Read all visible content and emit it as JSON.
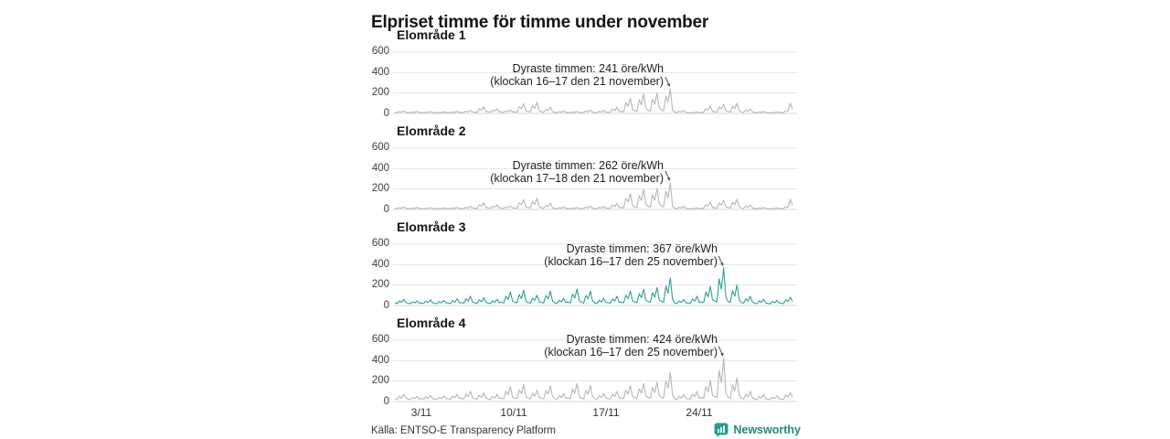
{
  "title": "Elpriset timme för timme under november",
  "source": "Källa: ENTSO-E Transparency Platform",
  "branding": {
    "name": "Newsworthy",
    "logo_color": "#1da092",
    "text_color": "#1f8a80"
  },
  "colors": {
    "gray_line": "#b5b5bd",
    "teal_line": "#28a396",
    "grid": "#e4e4e4",
    "zero_line": "#d7d7d7",
    "arrow": "#4a4a4a"
  },
  "axis": {
    "yticks": [
      "600",
      "400",
      "200",
      "0"
    ],
    "xticks": [
      "3/11",
      "10/11",
      "17/11",
      "24/11"
    ],
    "ymin": 0,
    "ymax": 600,
    "x_range": "1 november – 30 november, timvärden",
    "grid": "horizontal only"
  },
  "chart_data": [
    {
      "type": "line",
      "title": "Elområde 1",
      "ylabel": "öre/kWh",
      "color": "#b5b5bd",
      "peak": {
        "value": 241,
        "unit": "öre/kWh",
        "hours": "16–17",
        "date": "21 november"
      },
      "annotation": {
        "line1": "Dyraste timmen: 241 öre/kWh",
        "line2": "(klockan 16–17 den 21 november)"
      },
      "start": "1/11 00:00",
      "sample_interval_hours": 4,
      "values": [
        10,
        8,
        18,
        12,
        25,
        12,
        8,
        7,
        14,
        10,
        20,
        10,
        8,
        6,
        13,
        9,
        18,
        9,
        7,
        6,
        11,
        8,
        15,
        8,
        8,
        7,
        14,
        10,
        20,
        10,
        10,
        8,
        21,
        14,
        30,
        13,
        12,
        10,
        45,
        30,
        65,
        20,
        14,
        12,
        32,
        22,
        45,
        16,
        12,
        10,
        25,
        17,
        35,
        14,
        15,
        12,
        66,
        45,
        95,
        25,
        18,
        15,
        77,
        50,
        110,
        28,
        15,
        12,
        42,
        28,
        60,
        18,
        10,
        8,
        18,
        12,
        25,
        10,
        8,
        7,
        14,
        10,
        20,
        9,
        10,
        8,
        25,
        16,
        35,
        12,
        10,
        8,
        21,
        14,
        30,
        12,
        12,
        10,
        42,
        28,
        60,
        20,
        20,
        15,
        105,
        70,
        150,
        40,
        25,
        20,
        133,
        85,
        190,
        50,
        30,
        22,
        140,
        90,
        200,
        55,
        35,
        25,
        168,
        110,
        241,
        30,
        12,
        8,
        21,
        14,
        30,
        10,
        6,
        5,
        11,
        8,
        15,
        7,
        10,
        8,
        49,
        32,
        70,
        20,
        15,
        12,
        63,
        42,
        90,
        25,
        18,
        14,
        70,
        46,
        100,
        26,
        12,
        10,
        32,
        20,
        45,
        15,
        8,
        7,
        14,
        10,
        20,
        9,
        6,
        5,
        11,
        8,
        15,
        7,
        8,
        6,
        30,
        20,
        100,
        40
      ]
    },
    {
      "type": "line",
      "title": "Elområde 2",
      "ylabel": "öre/kWh",
      "color": "#b5b5bd",
      "peak": {
        "value": 262,
        "unit": "öre/kWh",
        "hours": "17–18",
        "date": "21 november"
      },
      "annotation": {
        "line1": "Dyraste timmen: 262 öre/kWh",
        "line2": "(klockan 17–18 den 21 november)"
      },
      "start": "1/11 00:00",
      "sample_interval_hours": 4,
      "values": [
        10,
        8,
        18,
        12,
        25,
        12,
        8,
        7,
        14,
        10,
        20,
        10,
        8,
        6,
        13,
        9,
        18,
        9,
        7,
        6,
        11,
        8,
        15,
        8,
        8,
        7,
        14,
        10,
        20,
        10,
        10,
        8,
        21,
        14,
        30,
        13,
        12,
        10,
        45,
        30,
        65,
        20,
        14,
        12,
        32,
        22,
        45,
        16,
        12,
        10,
        25,
        17,
        35,
        14,
        15,
        12,
        66,
        45,
        95,
        25,
        18,
        15,
        77,
        50,
        110,
        28,
        15,
        12,
        42,
        28,
        60,
        18,
        10,
        8,
        18,
        12,
        25,
        10,
        8,
        7,
        14,
        10,
        20,
        9,
        10,
        8,
        25,
        16,
        35,
        12,
        10,
        8,
        21,
        14,
        30,
        12,
        12,
        10,
        42,
        28,
        60,
        20,
        20,
        15,
        108,
        72,
        155,
        42,
        25,
        20,
        136,
        88,
        195,
        52,
        30,
        22,
        143,
        92,
        205,
        56,
        35,
        25,
        175,
        115,
        262,
        30,
        12,
        8,
        21,
        14,
        30,
        10,
        6,
        5,
        11,
        8,
        15,
        7,
        10,
        8,
        49,
        32,
        70,
        20,
        15,
        12,
        63,
        42,
        90,
        25,
        18,
        14,
        70,
        46,
        100,
        26,
        12,
        10,
        32,
        20,
        45,
        15,
        8,
        7,
        14,
        10,
        20,
        9,
        6,
        5,
        11,
        8,
        15,
        7,
        8,
        6,
        30,
        20,
        100,
        40
      ]
    },
    {
      "type": "line",
      "title": "Elområde 3",
      "ylabel": "öre/kWh",
      "color": "#28a396",
      "peak": {
        "value": 367,
        "unit": "öre/kWh",
        "hours": "16–17",
        "date": "25 november"
      },
      "annotation": {
        "line1": "Dyraste timmen: 367 öre/kWh",
        "line2": "(klockan 16–17 den 25 november)"
      },
      "start": "1/11 00:00",
      "sample_interval_hours": 4,
      "values": [
        25,
        20,
        45,
        30,
        60,
        28,
        22,
        18,
        34,
        25,
        45,
        24,
        24,
        20,
        42,
        28,
        55,
        26,
        22,
        18,
        38,
        26,
        50,
        25,
        25,
        20,
        48,
        32,
        65,
        28,
        28,
        22,
        65,
        42,
        90,
        32,
        26,
        20,
        55,
        36,
        75,
        30,
        24,
        18,
        45,
        30,
        60,
        28,
        30,
        24,
        90,
        60,
        130,
        40,
        32,
        25,
        105,
        68,
        150,
        45,
        28,
        22,
        72,
        48,
        100,
        35,
        30,
        24,
        98,
        64,
        140,
        42,
        25,
        20,
        52,
        34,
        70,
        30,
        32,
        25,
        112,
        72,
        160,
        48,
        30,
        24,
        98,
        64,
        140,
        42,
        25,
        20,
        52,
        34,
        70,
        30,
        28,
        22,
        65,
        42,
        90,
        32,
        32,
        26,
        100,
        66,
        140,
        45,
        35,
        28,
        115,
        75,
        160,
        50,
        38,
        30,
        125,
        80,
        175,
        55,
        40,
        32,
        190,
        120,
        270,
        60,
        25,
        18,
        45,
        30,
        60,
        25,
        26,
        20,
        65,
        42,
        90,
        30,
        35,
        28,
        130,
        85,
        185,
        55,
        45,
        35,
        260,
        160,
        367,
        80,
        40,
        30,
        145,
        90,
        200,
        55,
        28,
        22,
        65,
        42,
        90,
        30,
        22,
        18,
        45,
        30,
        60,
        25,
        20,
        16,
        38,
        26,
        50,
        24,
        22,
        18,
        58,
        38,
        80,
        40
      ]
    },
    {
      "type": "line",
      "title": "Elområde 4",
      "ylabel": "öre/kWh",
      "color": "#b5b5bd",
      "peak": {
        "value": 424,
        "unit": "öre/kWh",
        "hours": "16–17",
        "date": "25 november"
      },
      "annotation": {
        "line1": "Dyraste timmen: 424 öre/kWh",
        "line2": "(klockan 16–17 den 25 november)"
      },
      "start": "1/11 00:00",
      "sample_interval_hours": 4,
      "values": [
        28,
        22,
        50,
        34,
        70,
        30,
        24,
        20,
        38,
        28,
        50,
        26,
        26,
        22,
        46,
        30,
        60,
        28,
        24,
        20,
        42,
        28,
        55,
        27,
        28,
        22,
        52,
        35,
        72,
        30,
        30,
        24,
        72,
        46,
        100,
        35,
        28,
        22,
        60,
        40,
        85,
        32,
        26,
        20,
        50,
        34,
        70,
        30,
        32,
        26,
        100,
        65,
        145,
        42,
        35,
        28,
        115,
        75,
        165,
        48,
        30,
        24,
        80,
        52,
        110,
        38,
        32,
        26,
        108,
        70,
        155,
        45,
        27,
        22,
        58,
        38,
        78,
        32,
        35,
        28,
        122,
        80,
        175,
        50,
        32,
        26,
        108,
        70,
        155,
        45,
        27,
        22,
        58,
        38,
        78,
        32,
        30,
        24,
        72,
        46,
        100,
        35,
        35,
        28,
        110,
        72,
        155,
        48,
        38,
        30,
        125,
        82,
        175,
        52,
        40,
        32,
        135,
        88,
        190,
        58,
        42,
        34,
        200,
        130,
        285,
        62,
        27,
        20,
        50,
        34,
        68,
        27,
        28,
        22,
        72,
        46,
        100,
        32,
        38,
        30,
        145,
        95,
        205,
        58,
        48,
        38,
        300,
        185,
        424,
        85,
        42,
        32,
        165,
        100,
        230,
        60,
        30,
        24,
        72,
        46,
        100,
        32,
        24,
        20,
        50,
        34,
        68,
        27,
        22,
        18,
        42,
        28,
        55,
        26,
        24,
        20,
        64,
        42,
        88,
        42
      ]
    }
  ]
}
